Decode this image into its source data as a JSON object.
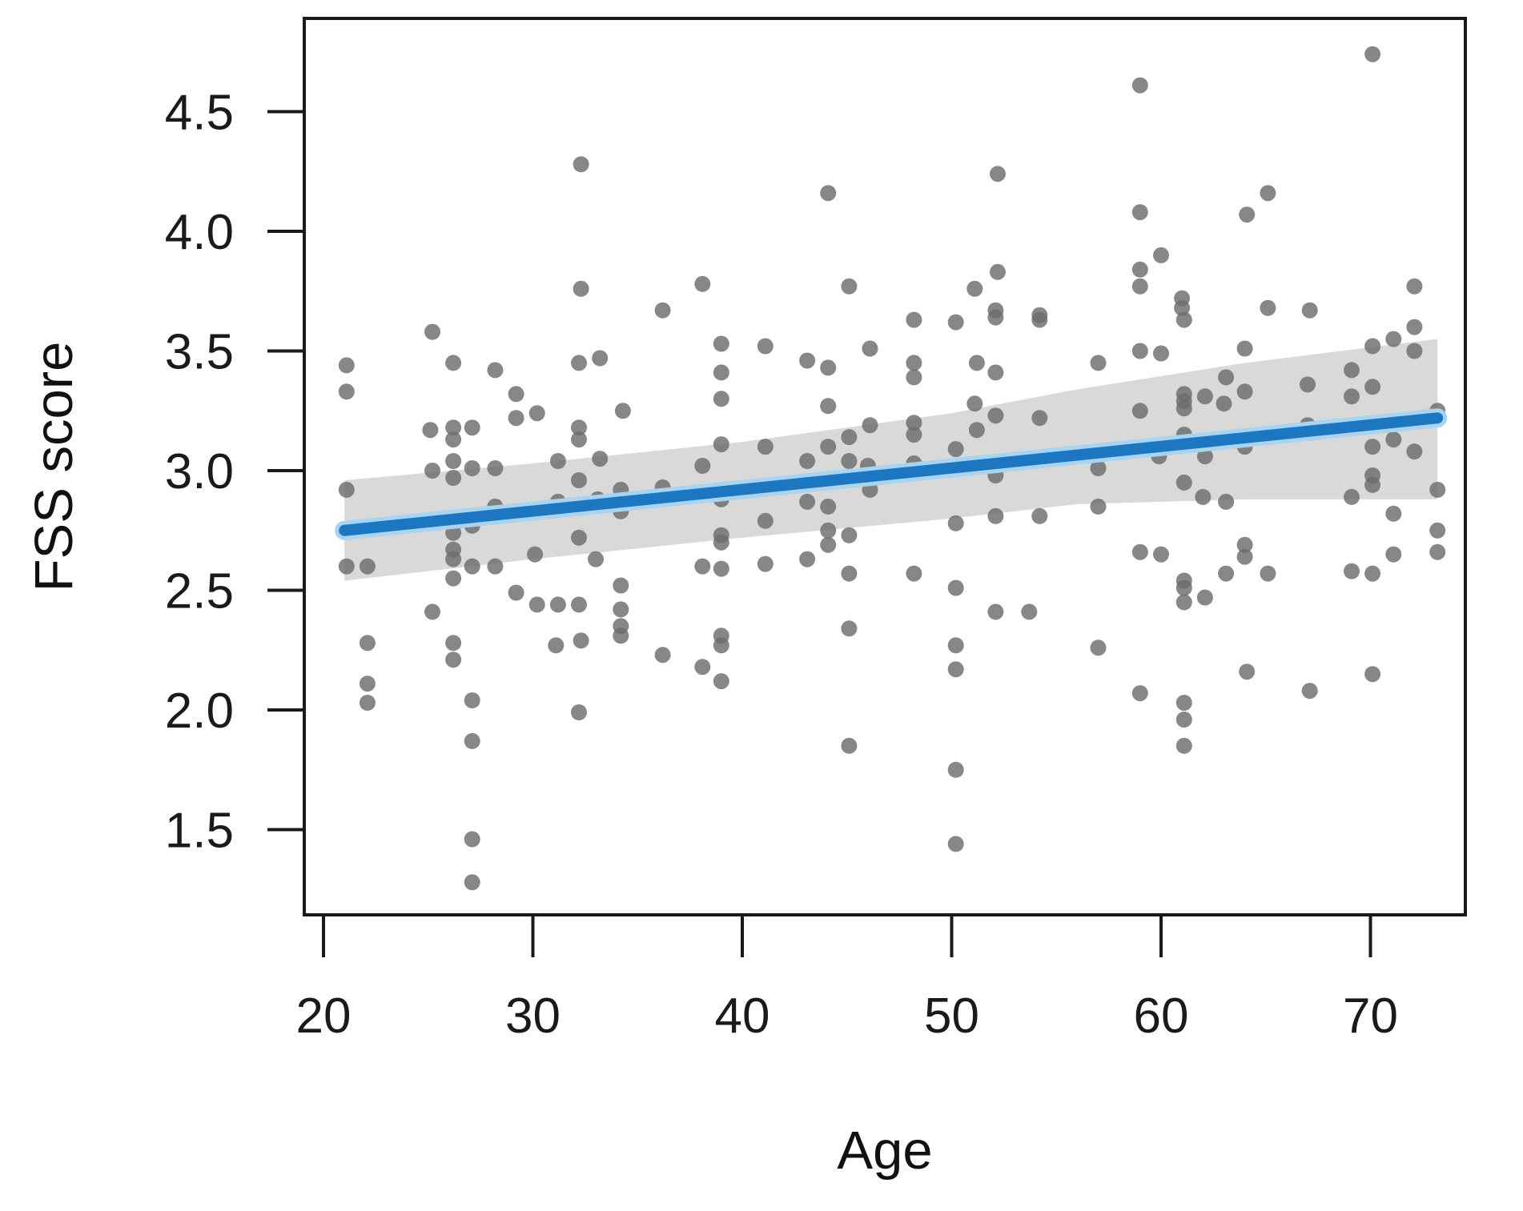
{
  "figure": {
    "background": "#ffffff",
    "border_color": "#1a1a1a",
    "tick_color": "#1a1a1a"
  },
  "chart_data": {
    "type": "scatter",
    "title": "",
    "xlabel": "Age",
    "ylabel": "FSS score",
    "grid": false,
    "legend": "none",
    "xlim": [
      19.1,
      74.5
    ],
    "ylim": [
      1.14,
      4.89
    ],
    "x_ticks": [
      {
        "label": "20",
        "value": 20
      },
      {
        "label": "30",
        "value": 30
      },
      {
        "label": "40",
        "value": 40
      },
      {
        "label": "50",
        "value": 50
      },
      {
        "label": "60",
        "value": 60
      },
      {
        "label": "70",
        "value": 70
      }
    ],
    "y_ticks": [
      {
        "label": "1.5",
        "value": 1.5
      },
      {
        "label": "2.0",
        "value": 2.0
      },
      {
        "label": "2.5",
        "value": 2.5
      },
      {
        "label": "3.0",
        "value": 3.0
      },
      {
        "label": "3.5",
        "value": 3.5
      },
      {
        "label": "4.0",
        "value": 4.0
      },
      {
        "label": "4.5",
        "value": 4.5
      }
    ],
    "colors": {
      "point": "#6d6d6d",
      "point_opacity": 0.82,
      "regression_line": "#1d77c0",
      "regression_halo": "#a8d4f2",
      "confidence_band": "#d9d9d9"
    },
    "regression_line": {
      "x": [
        21,
        73.2
      ],
      "y": [
        2.75,
        3.22
      ]
    },
    "confidence_band": {
      "ages": [
        21,
        30,
        40,
        50,
        56,
        64,
        73.2
      ],
      "upper": [
        2.96,
        3.03,
        3.12,
        3.24,
        3.34,
        3.45,
        3.55
      ],
      "lower": [
        2.54,
        2.63,
        2.72,
        2.8,
        2.86,
        2.88,
        2.88
      ]
    },
    "points": [
      [
        21.1,
        3.44
      ],
      [
        21.1,
        3.33
      ],
      [
        21.1,
        2.92
      ],
      [
        21.1,
        2.6
      ],
      [
        22.1,
        2.6
      ],
      [
        22.1,
        2.28
      ],
      [
        22.1,
        2.11
      ],
      [
        22.1,
        2.03
      ],
      [
        25.2,
        3.58
      ],
      [
        25.1,
        3.17
      ],
      [
        25.2,
        3.0
      ],
      [
        25.2,
        2.41
      ],
      [
        26.2,
        3.45
      ],
      [
        26.2,
        3.18
      ],
      [
        26.2,
        3.13
      ],
      [
        26.2,
        3.04
      ],
      [
        26.2,
        2.97
      ],
      [
        26.2,
        2.74
      ],
      [
        26.2,
        2.67
      ],
      [
        26.2,
        2.63
      ],
      [
        26.2,
        2.55
      ],
      [
        26.2,
        2.28
      ],
      [
        26.2,
        2.21
      ],
      [
        27.1,
        3.18
      ],
      [
        27.1,
        3.01
      ],
      [
        27.1,
        2.77
      ],
      [
        27.1,
        2.6
      ],
      [
        27.1,
        2.04
      ],
      [
        27.1,
        1.87
      ],
      [
        27.1,
        1.46
      ],
      [
        27.1,
        1.28
      ],
      [
        28.2,
        3.42
      ],
      [
        28.2,
        3.01
      ],
      [
        28.2,
        2.85
      ],
      [
        28.2,
        2.6
      ],
      [
        29.2,
        3.32
      ],
      [
        29.2,
        3.22
      ],
      [
        29.2,
        2.49
      ],
      [
        30.2,
        3.24
      ],
      [
        30.1,
        2.65
      ],
      [
        30.2,
        2.44
      ],
      [
        31.2,
        3.04
      ],
      [
        31.2,
        2.87
      ],
      [
        31.2,
        2.44
      ],
      [
        31.1,
        2.27
      ],
      [
        32.3,
        4.28
      ],
      [
        32.3,
        3.76
      ],
      [
        32.2,
        3.45
      ],
      [
        32.2,
        3.18
      ],
      [
        32.2,
        3.13
      ],
      [
        32.2,
        2.96
      ],
      [
        32.2,
        2.72
      ],
      [
        32.2,
        2.44
      ],
      [
        32.3,
        2.29
      ],
      [
        32.2,
        1.99
      ],
      [
        33.2,
        3.47
      ],
      [
        33.2,
        3.05
      ],
      [
        33.1,
        2.88
      ],
      [
        33.0,
        2.63
      ],
      [
        34.3,
        3.25
      ],
      [
        34.2,
        2.92
      ],
      [
        34.2,
        2.83
      ],
      [
        34.2,
        2.52
      ],
      [
        34.2,
        2.42
      ],
      [
        34.2,
        2.35
      ],
      [
        34.2,
        2.31
      ],
      [
        36.2,
        3.67
      ],
      [
        36.2,
        2.93
      ],
      [
        36.2,
        2.23
      ],
      [
        38.1,
        3.78
      ],
      [
        38.1,
        3.02
      ],
      [
        38.1,
        2.6
      ],
      [
        38.1,
        2.18
      ],
      [
        39.0,
        3.53
      ],
      [
        39.0,
        3.41
      ],
      [
        39.0,
        3.3
      ],
      [
        39.0,
        3.11
      ],
      [
        39.0,
        2.88
      ],
      [
        39.0,
        2.73
      ],
      [
        39.0,
        2.7
      ],
      [
        39.0,
        2.59
      ],
      [
        39.0,
        2.31
      ],
      [
        39.0,
        2.27
      ],
      [
        39.0,
        2.12
      ],
      [
        41.1,
        3.52
      ],
      [
        41.1,
        3.1
      ],
      [
        41.1,
        2.79
      ],
      [
        41.1,
        2.61
      ],
      [
        43.1,
        3.46
      ],
      [
        43.1,
        3.04
      ],
      [
        43.1,
        2.87
      ],
      [
        43.1,
        2.63
      ],
      [
        44.1,
        4.16
      ],
      [
        44.1,
        3.43
      ],
      [
        44.1,
        3.27
      ],
      [
        44.1,
        3.1
      ],
      [
        44.1,
        2.85
      ],
      [
        44.1,
        2.75
      ],
      [
        44.1,
        2.69
      ],
      [
        45.1,
        3.77
      ],
      [
        45.1,
        3.14
      ],
      [
        45.1,
        3.04
      ],
      [
        45.1,
        2.73
      ],
      [
        45.1,
        2.57
      ],
      [
        45.1,
        2.34
      ],
      [
        45.1,
        1.85
      ],
      [
        46.1,
        3.51
      ],
      [
        46.1,
        3.19
      ],
      [
        46.0,
        3.02
      ],
      [
        46.1,
        2.92
      ],
      [
        48.2,
        3.63
      ],
      [
        48.2,
        3.45
      ],
      [
        48.2,
        3.39
      ],
      [
        48.2,
        3.2
      ],
      [
        48.2,
        3.15
      ],
      [
        48.2,
        3.03
      ],
      [
        48.2,
        2.57
      ],
      [
        50.2,
        3.62
      ],
      [
        50.2,
        3.09
      ],
      [
        50.2,
        2.78
      ],
      [
        50.2,
        2.51
      ],
      [
        50.2,
        2.27
      ],
      [
        50.2,
        2.17
      ],
      [
        50.2,
        1.75
      ],
      [
        50.2,
        1.44
      ],
      [
        51.1,
        3.76
      ],
      [
        51.2,
        3.45
      ],
      [
        51.1,
        3.28
      ],
      [
        51.2,
        3.17
      ],
      [
        52.2,
        4.24
      ],
      [
        52.2,
        3.83
      ],
      [
        52.1,
        3.67
      ],
      [
        52.1,
        3.64
      ],
      [
        52.1,
        3.41
      ],
      [
        52.1,
        3.23
      ],
      [
        52.1,
        2.98
      ],
      [
        52.1,
        2.81
      ],
      [
        52.1,
        2.41
      ],
      [
        54.2,
        3.65
      ],
      [
        54.2,
        3.63
      ],
      [
        54.2,
        3.22
      ],
      [
        54.2,
        2.81
      ],
      [
        53.7,
        2.41
      ],
      [
        57.0,
        3.45
      ],
      [
        57.0,
        3.01
      ],
      [
        57.0,
        2.85
      ],
      [
        57.0,
        2.26
      ],
      [
        59.0,
        4.61
      ],
      [
        59.0,
        4.08
      ],
      [
        59.0,
        3.84
      ],
      [
        59.0,
        3.77
      ],
      [
        59.0,
        3.5
      ],
      [
        59.0,
        3.25
      ],
      [
        59.0,
        2.66
      ],
      [
        59.0,
        2.07
      ],
      [
        60.0,
        3.9
      ],
      [
        60.0,
        3.49
      ],
      [
        59.9,
        3.06
      ],
      [
        60.0,
        2.65
      ],
      [
        61.0,
        3.72
      ],
      [
        61.0,
        3.68
      ],
      [
        61.1,
        3.63
      ],
      [
        61.1,
        3.32
      ],
      [
        61.1,
        3.29
      ],
      [
        61.1,
        3.26
      ],
      [
        61.1,
        3.15
      ],
      [
        61.1,
        2.95
      ],
      [
        61.1,
        2.54
      ],
      [
        61.1,
        2.51
      ],
      [
        61.1,
        2.45
      ],
      [
        61.1,
        2.03
      ],
      [
        61.1,
        1.96
      ],
      [
        61.1,
        1.85
      ],
      [
        62.1,
        3.31
      ],
      [
        62.1,
        3.06
      ],
      [
        62.0,
        2.89
      ],
      [
        62.1,
        2.47
      ],
      [
        63.1,
        3.39
      ],
      [
        63.0,
        3.28
      ],
      [
        63.1,
        2.87
      ],
      [
        63.1,
        2.57
      ],
      [
        64.1,
        4.07
      ],
      [
        64.0,
        3.51
      ],
      [
        64.0,
        3.33
      ],
      [
        64.0,
        3.1
      ],
      [
        64.0,
        2.69
      ],
      [
        64.0,
        2.64
      ],
      [
        64.1,
        2.16
      ],
      [
        65.1,
        4.16
      ],
      [
        65.1,
        3.68
      ],
      [
        65.1,
        2.57
      ],
      [
        67.1,
        3.67
      ],
      [
        67.0,
        3.36
      ],
      [
        67.0,
        3.19
      ],
      [
        67.1,
        2.08
      ],
      [
        69.1,
        3.42
      ],
      [
        69.1,
        3.31
      ],
      [
        69.1,
        2.89
      ],
      [
        69.1,
        2.58
      ],
      [
        70.1,
        4.74
      ],
      [
        70.1,
        3.52
      ],
      [
        70.1,
        3.35
      ],
      [
        70.1,
        3.1
      ],
      [
        70.1,
        2.98
      ],
      [
        70.1,
        2.94
      ],
      [
        70.1,
        2.57
      ],
      [
        70.1,
        2.15
      ],
      [
        71.1,
        3.55
      ],
      [
        71.1,
        3.13
      ],
      [
        71.1,
        2.82
      ],
      [
        71.1,
        2.65
      ],
      [
        72.1,
        3.77
      ],
      [
        72.1,
        3.6
      ],
      [
        72.1,
        3.5
      ],
      [
        72.1,
        3.08
      ],
      [
        73.2,
        3.25
      ],
      [
        73.2,
        2.92
      ],
      [
        73.2,
        2.75
      ],
      [
        73.2,
        2.66
      ]
    ]
  }
}
